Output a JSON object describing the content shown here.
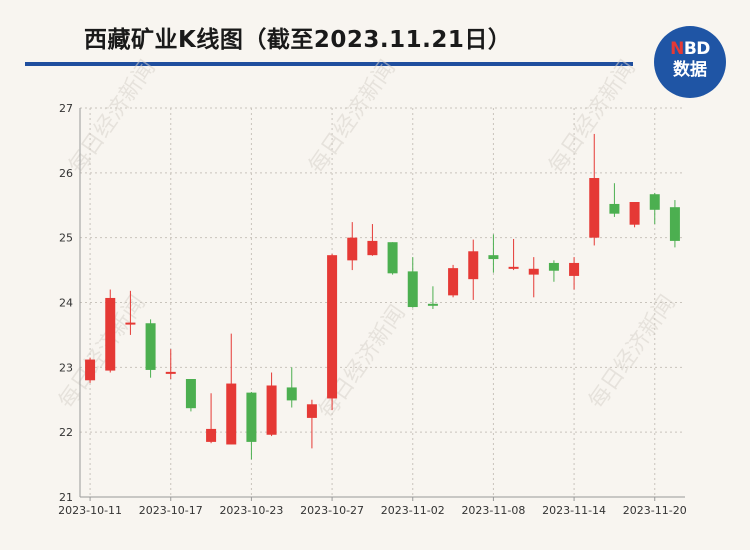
{
  "header": {
    "title": "西藏矿业K线图（截至2023.11.21日）",
    "logo_line1_red": "N",
    "logo_line1_rest": "BD",
    "logo_line2": "数据"
  },
  "watermark": "每日经济新闻",
  "colors": {
    "up": "#e53935",
    "down": "#4caf50",
    "brand": "#1f55a5",
    "rule": "#1f4e9e",
    "background": "#f8f5f0"
  },
  "chart_data": {
    "type": "candlestick",
    "title": "西藏矿业K线图（截至2023.11.21日）",
    "ylim": [
      21,
      27
    ],
    "yticks": [
      21,
      22,
      23,
      24,
      25,
      26,
      27
    ],
    "xticks": [
      "2023-10-11",
      "2023-10-17",
      "2023-10-23",
      "2023-10-27",
      "2023-11-02",
      "2023-11-08",
      "2023-11-14",
      "2023-11-20"
    ],
    "xtick_index": [
      0,
      4,
      8,
      12,
      16,
      20,
      24,
      28
    ],
    "grid": true,
    "candles": [
      {
        "open": 22.8,
        "close": 23.12,
        "high": 23.15,
        "low": 22.76
      },
      {
        "open": 22.95,
        "close": 24.07,
        "high": 24.2,
        "low": 22.92
      },
      {
        "open": 23.66,
        "close": 23.69,
        "high": 24.18,
        "low": 23.5
      },
      {
        "open": 23.68,
        "close": 22.96,
        "high": 23.74,
        "low": 22.84
      },
      {
        "open": 22.9,
        "close": 22.93,
        "high": 23.28,
        "low": 22.82
      },
      {
        "open": 22.82,
        "close": 22.37,
        "high": 22.82,
        "low": 22.32
      },
      {
        "open": 21.85,
        "close": 22.05,
        "high": 22.6,
        "low": 21.83
      },
      {
        "open": 21.81,
        "close": 22.75,
        "high": 23.52,
        "low": 21.81
      },
      {
        "open": 22.61,
        "close": 21.85,
        "high": 22.62,
        "low": 21.58
      },
      {
        "open": 21.96,
        "close": 22.72,
        "high": 22.92,
        "low": 21.94
      },
      {
        "open": 22.69,
        "close": 22.49,
        "high": 23.0,
        "low": 22.38
      },
      {
        "open": 22.22,
        "close": 22.43,
        "high": 22.5,
        "low": 21.75
      },
      {
        "open": 22.52,
        "close": 24.73,
        "high": 24.75,
        "low": 22.34
      },
      {
        "open": 24.65,
        "close": 25.0,
        "high": 25.24,
        "low": 24.5
      },
      {
        "open": 24.73,
        "close": 24.95,
        "high": 25.21,
        "low": 24.72
      },
      {
        "open": 24.93,
        "close": 24.45,
        "high": 24.93,
        "low": 24.43
      },
      {
        "open": 24.48,
        "close": 23.93,
        "high": 24.7,
        "low": 23.92
      },
      {
        "open": 23.98,
        "close": 23.95,
        "high": 24.25,
        "low": 23.9
      },
      {
        "open": 24.11,
        "close": 24.53,
        "high": 24.58,
        "low": 24.08
      },
      {
        "open": 24.36,
        "close": 24.79,
        "high": 24.97,
        "low": 24.04
      },
      {
        "open": 24.73,
        "close": 24.67,
        "high": 25.05,
        "low": 24.46
      },
      {
        "open": 24.52,
        "close": 24.55,
        "high": 24.98,
        "low": 24.5
      },
      {
        "open": 24.43,
        "close": 24.52,
        "high": 24.7,
        "low": 24.08
      },
      {
        "open": 24.61,
        "close": 24.49,
        "high": 24.65,
        "low": 24.32
      },
      {
        "open": 24.41,
        "close": 24.61,
        "high": 24.7,
        "low": 24.2
      },
      {
        "open": 25.0,
        "close": 25.92,
        "high": 26.6,
        "low": 24.88
      },
      {
        "open": 25.52,
        "close": 25.37,
        "high": 25.84,
        "low": 25.32
      },
      {
        "open": 25.2,
        "close": 25.55,
        "high": 25.55,
        "low": 25.16
      },
      {
        "open": 25.67,
        "close": 25.43,
        "high": 25.69,
        "low": 25.21
      },
      {
        "open": 25.47,
        "close": 24.95,
        "high": 25.58,
        "low": 24.85
      }
    ]
  }
}
